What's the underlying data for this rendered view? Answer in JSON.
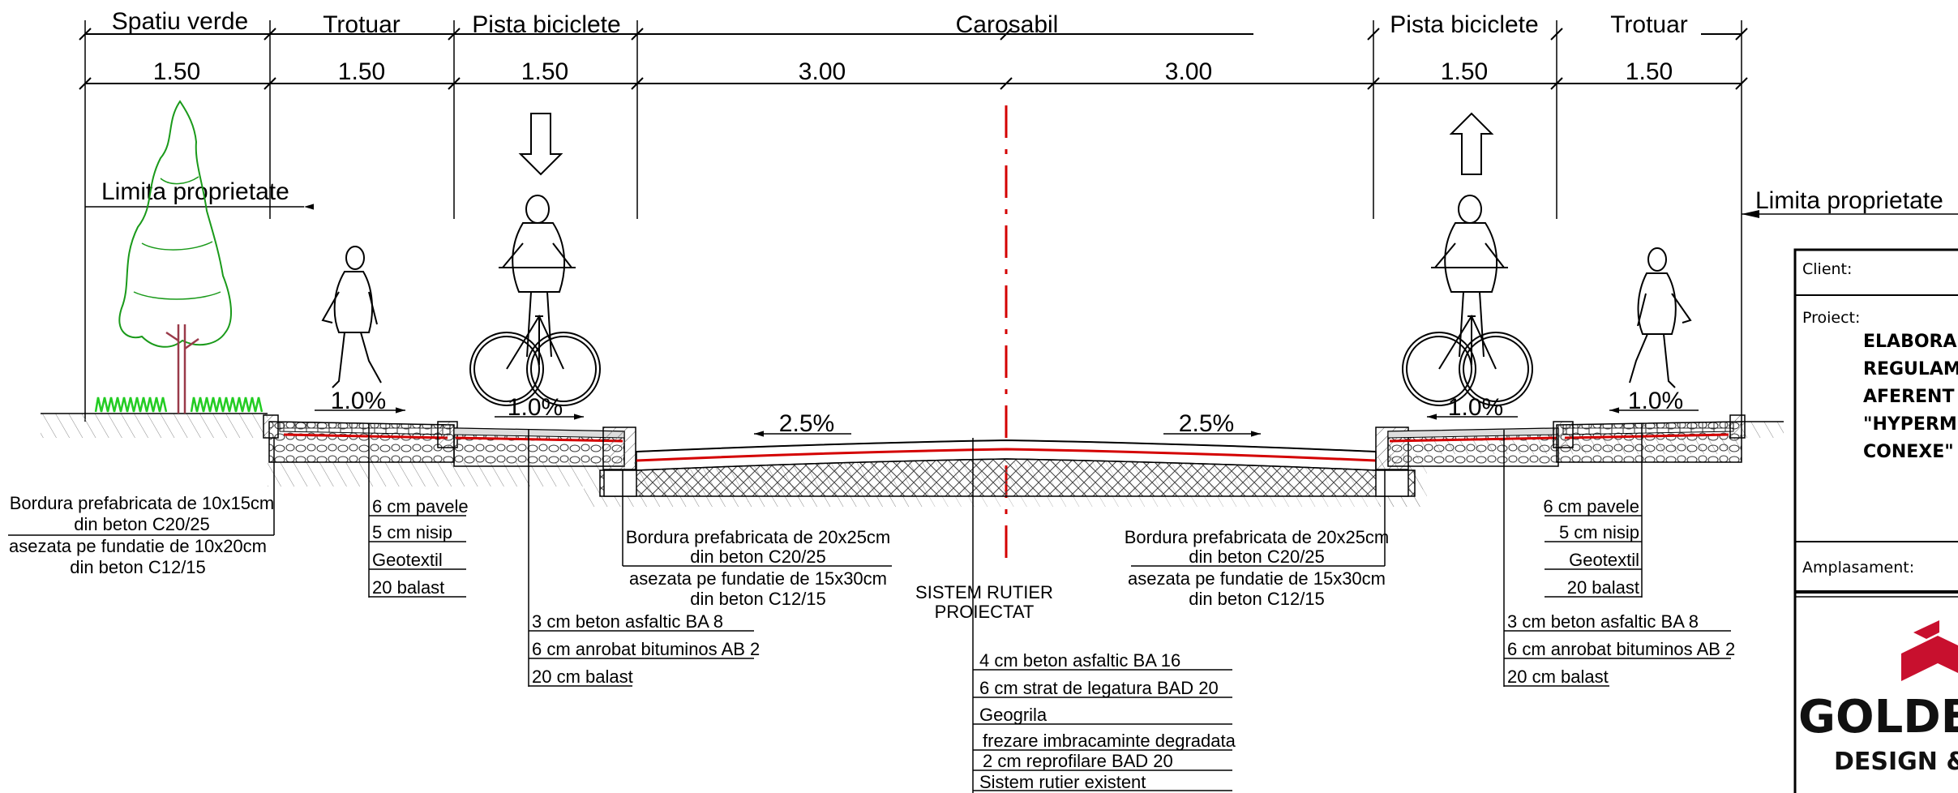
{
  "zones": {
    "spatiu_verde": "Spatiu verde",
    "trotuar_left": "Trotuar",
    "pista_left": "Pista biciclete",
    "carosabil": "Carosabil",
    "pista_right": "Pista biciclete",
    "trotuar_right": "Trotuar"
  },
  "dims": [
    "1.50",
    "1.50",
    "1.50",
    "3.00",
    "3.00",
    "1.50",
    "1.50"
  ],
  "property_limit_left": "Limita proprietate",
  "property_limit_right": "Limita proprietate",
  "slopes": {
    "trotuar_left": "1.0%",
    "pista_left": "1.0%",
    "road_left": "2.5%",
    "road_right": "2.5%",
    "pista_right": "1.0%",
    "trotuar_right": "1.0%"
  },
  "notes": {
    "curb_small_1": "Bordura prefabricata de 10x15cm",
    "curb_small_2": "din beton C20/25",
    "curb_small_3": "asezata pe fundatie de 10x20cm",
    "curb_small_4": "din beton C12/15",
    "curb_left_1": "Bordura prefabricata de 20x25cm",
    "curb_left_2": "din beton C20/25",
    "curb_left_3": "asezata pe fundatie de 15x30cm",
    "curb_left_4": "din beton C12/15",
    "curb_right_1": "Bordura prefabricata de 20x25cm",
    "curb_right_2": "din beton C20/25",
    "curb_right_3": "asezata pe fundatie de 15x30cm",
    "curb_right_4": "din beton C12/15",
    "sistem_1": "SISTEM RUTIER",
    "sistem_2": "PROIECTAT"
  },
  "layers_sidewalk_left": [
    "6 cm pavele",
    "5 cm nisip",
    "Geotextil",
    "20 balast"
  ],
  "layers_bike_left": [
    "3 cm beton asfaltic BA 8",
    "6 cm anrobat bituminos AB 2",
    "20 cm balast"
  ],
  "layers_road": [
    "4 cm beton asfaltic BA 16",
    "6 cm strat de legatura BAD 20",
    "Geogrila",
    "frezare imbracaminte degradata",
    "2 cm reprofilare BAD 20",
    "Sistem rutier existent"
  ],
  "layers_sidewalk_right": [
    "6 cm pavele",
    "5 cm nisip",
    "Geotextil",
    "20 balast"
  ],
  "layers_bike_right": [
    "3 cm beton asfaltic BA 8",
    "6 cm anrobat bituminos AB 2",
    "20 cm balast"
  ],
  "title_block": {
    "client_label": "Client:",
    "proiect_label": "Proiect:",
    "proiect_lines": [
      "ELABORA",
      "REGULAM",
      "AFERENT",
      "\"HYPERM",
      "CONEXE\""
    ],
    "amplasament_label": "Amplasament:",
    "logo_text_1": "GOLDB",
    "logo_text_2": "DESIGN &"
  },
  "colors": {
    "tree": "#1a9a1a",
    "grass": "#22cc22",
    "axis": "#d40000",
    "logo": "#c8102e"
  }
}
